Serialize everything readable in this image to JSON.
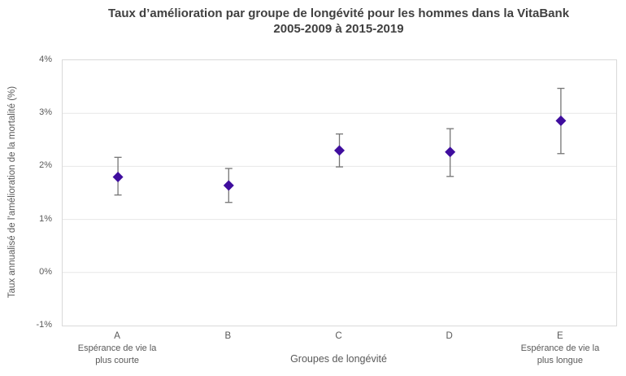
{
  "title": {
    "line1": "Taux d’amélioration par groupe de longévité pour les hommes dans la VitaBank",
    "line2": "2005-2009 à 2015-2019"
  },
  "chart_data": {
    "type": "scatter",
    "title": "Taux d’amélioration par groupe de longévité pour les hommes dans la VitaBank 2005-2009 à 2015-2019",
    "xlabel": "Groupes de longévité",
    "ylabel": "Taux annualisé de l’amélioration de la mortalité (%)",
    "categories": [
      "A",
      "B",
      "C",
      "D",
      "E"
    ],
    "category_sublabels": [
      [
        "Espérance de vie la",
        "plus courte"
      ],
      [],
      [],
      [],
      [
        "Espérance de vie la",
        "plus longue"
      ]
    ],
    "ylim": [
      -1,
      4
    ],
    "ytick_values": [
      4,
      3,
      2,
      1,
      0,
      -1
    ],
    "ytick_labels": [
      "4%",
      "3%",
      "2%",
      "1%",
      "0%",
      "-1%"
    ],
    "grid": true,
    "legend": "none",
    "marker": "diamond",
    "series": [
      {
        "values": [
          1.8,
          1.64,
          2.3,
          2.27,
          2.86
        ],
        "error_low": [
          1.46,
          1.32,
          1.99,
          1.81,
          2.24
        ],
        "error_high": [
          2.17,
          1.96,
          2.61,
          2.71,
          3.47
        ]
      }
    ]
  },
  "colors": {
    "marker": "#3F0D9E",
    "error_bar": "#757575",
    "grid": "#e7e7e7",
    "plot_border": "#d9d9d9",
    "title_text": "#404040",
    "axis_text": "#595959",
    "background": "#ffffff"
  }
}
